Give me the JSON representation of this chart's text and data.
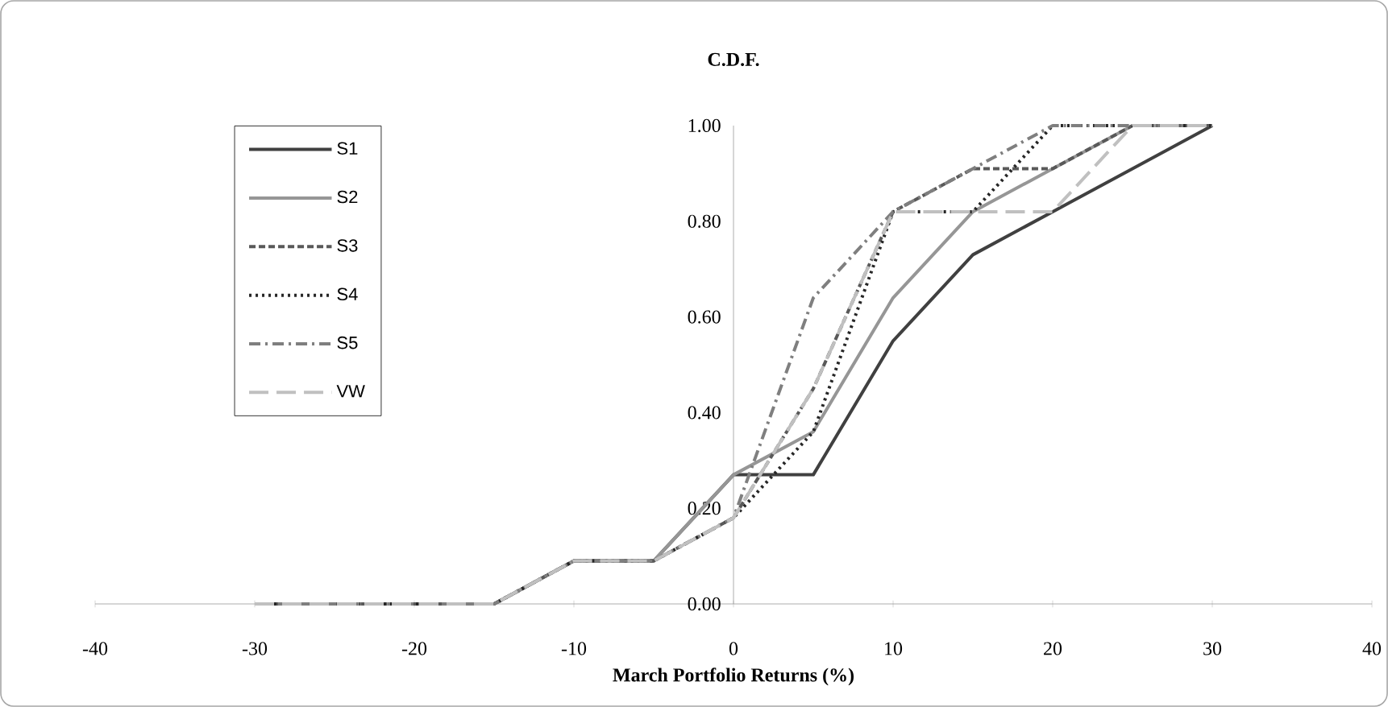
{
  "chart_data": {
    "type": "line",
    "title": "C.D.F.",
    "xlabel": "March Portfolio Returns  (%)",
    "x": [
      -30,
      -25,
      -20,
      -15,
      -10,
      -5,
      0,
      5,
      10,
      15,
      20,
      25,
      30
    ],
    "xlim": [
      -40,
      40
    ],
    "xticks": [
      -40,
      -30,
      -20,
      -10,
      0,
      10,
      20,
      30,
      40
    ],
    "ylim": [
      0,
      1
    ],
    "yticks": [
      {
        "value": 0,
        "label": "0.00"
      },
      {
        "value": 0.2,
        "label": "0.20"
      },
      {
        "value": 0.4,
        "label": "0.40"
      },
      {
        "value": 0.6,
        "label": "0.60"
      },
      {
        "value": 0.8,
        "label": "0.80"
      },
      {
        "value": 1,
        "label": "1.00"
      }
    ],
    "grid": false,
    "legend": "top left",
    "marker": "none",
    "series": [
      {
        "name": "S1",
        "color": "#404040",
        "line_style": "solid",
        "values": [
          0,
          0,
          0,
          0,
          0.09,
          0.09,
          0.27,
          0.27,
          0.55,
          0.73,
          0.82,
          0.91,
          1
        ]
      },
      {
        "name": "S2",
        "color": "#969696",
        "line_style": "solid",
        "values": [
          0,
          0,
          0,
          0,
          0.09,
          0.09,
          0.27,
          0.36,
          0.64,
          0.82,
          0.91,
          1,
          1
        ]
      },
      {
        "name": "S3",
        "color": "#595959",
        "line_style": "dashed",
        "values": [
          0,
          0,
          0,
          0,
          0.09,
          0.09,
          0.18,
          0.45,
          0.82,
          0.91,
          0.91,
          1,
          1
        ]
      },
      {
        "name": "S4",
        "color": "#262626",
        "line_style": "dotted",
        "values": [
          0,
          0,
          0,
          0,
          0.09,
          0.09,
          0.18,
          0.36,
          0.82,
          0.82,
          1,
          1,
          1
        ]
      },
      {
        "name": "S5",
        "color": "#7f7f7f",
        "line_style": "dashdot",
        "values": [
          0,
          0,
          0,
          0,
          0.09,
          0.09,
          0.18,
          0.64,
          0.82,
          0.91,
          1,
          1,
          1
        ]
      },
      {
        "name": "VW",
        "color": "#c0c0c0",
        "line_style": "longdash",
        "values": [
          0,
          0,
          0,
          0,
          0.09,
          0.09,
          0.18,
          0.45,
          0.82,
          0.82,
          0.82,
          1,
          1
        ]
      }
    ]
  }
}
